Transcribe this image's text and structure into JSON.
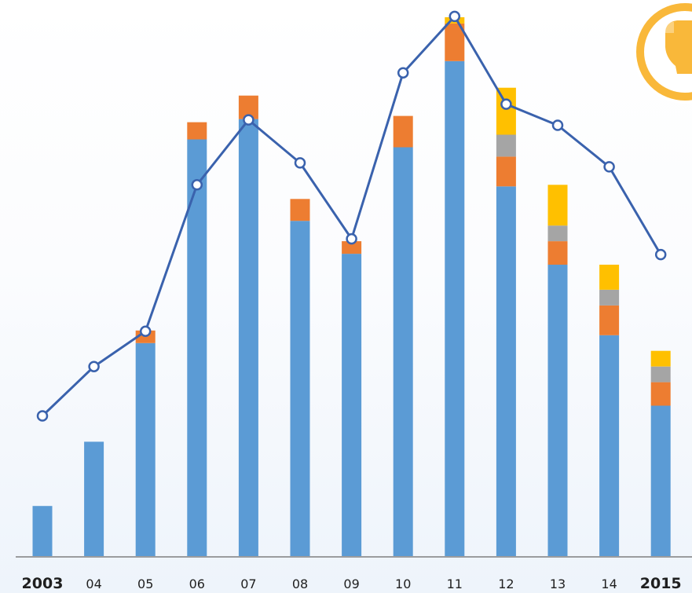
{
  "chart_data": {
    "type": "bar",
    "categories": [
      "2003",
      "04",
      "05",
      "06",
      "07",
      "08",
      "09",
      "10",
      "11",
      "12",
      "13",
      "14",
      "2015"
    ],
    "bold_categories": [
      "2003",
      "2015"
    ],
    "stacked": true,
    "series": [
      {
        "color": "#5b9bd5",
        "values": [
          64,
          146,
          272,
          532,
          558,
          428,
          386,
          522,
          632,
          472,
          372,
          282,
          192
        ]
      },
      {
        "color": "#ed7d31",
        "values": [
          0,
          0,
          16,
          22,
          30,
          28,
          16,
          40,
          48,
          38,
          30,
          38,
          30
        ]
      },
      {
        "color": "#a5a5a5",
        "values": [
          0,
          0,
          0,
          0,
          0,
          0,
          0,
          0,
          0,
          28,
          20,
          20,
          20
        ]
      },
      {
        "color": "#ffc000",
        "values": [
          0,
          0,
          0,
          0,
          0,
          0,
          0,
          0,
          8,
          60,
          52,
          32,
          20
        ]
      }
    ],
    "line_series": {
      "color": "#3a62ad",
      "values": [
        179,
        242,
        287,
        474,
        557,
        502,
        405,
        617,
        689,
        577,
        550,
        497,
        385
      ]
    },
    "ylim": [
      0,
      710
    ],
    "grid": false,
    "legend": "none",
    "axis_color": "#7f7f7f"
  },
  "decoration": {
    "badge_color": "#f9b83a",
    "badge_icon": "bulb-icon"
  }
}
